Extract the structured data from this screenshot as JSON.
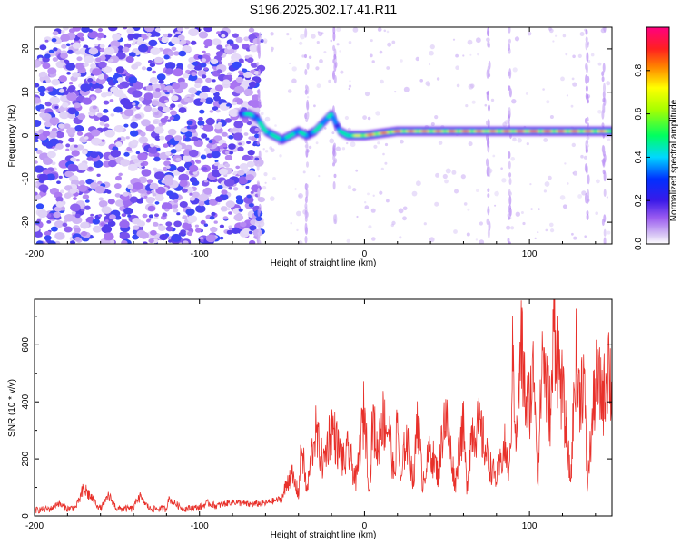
{
  "title": "S196.2025.302.17.41.R11",
  "chart_data": [
    {
      "type": "heatmap",
      "xlabel": "Height of straight line (km)",
      "ylabel": "Frequency (Hz)",
      "xlim": [
        -200,
        150
      ],
      "ylim": [
        -25,
        25
      ],
      "xticks": [
        -200,
        -100,
        0,
        100
      ],
      "xtick_labels": [
        "-200",
        "-100",
        "0",
        "100"
      ],
      "yticks": [
        -20,
        -10,
        0,
        10,
        20
      ],
      "ytick_labels": [
        "-20",
        "-10",
        "0",
        "10",
        "20"
      ],
      "colorbar": {
        "label": "Normalized spectral amplitude",
        "range": [
          0,
          1
        ],
        "ticks": [
          0,
          0.2,
          0.4,
          0.6,
          0.8
        ],
        "tick_labels": [
          "0.0",
          "0.2",
          "0.4",
          "0.6",
          "0.8"
        ]
      },
      "ridge": {
        "description_points_x": [
          -75,
          -70,
          -65,
          -60,
          -55,
          -50,
          -45,
          -40,
          -35,
          -30,
          -25,
          -20,
          -15,
          -10,
          0,
          20,
          40,
          60,
          80,
          100,
          120,
          140,
          150
        ],
        "description_points_y": [
          5,
          5,
          4,
          1,
          0,
          -1,
          0,
          1,
          0,
          1,
          3,
          5,
          1,
          0,
          0,
          1,
          1,
          1,
          1,
          1,
          1,
          1,
          1
        ],
        "peak_amplitude": [
          0.4,
          0.5,
          0.4,
          0.55,
          0.5,
          0.45,
          0.5,
          0.45,
          0.4,
          0.45,
          0.5,
          0.4,
          0.5,
          0.55,
          0.85,
          0.9,
          0.85,
          0.9,
          0.85,
          0.95,
          0.9,
          0.85,
          0.8
        ]
      },
      "noise_region_x": [
        -200,
        -62
      ],
      "noise_amplitude_max": 0.25
    },
    {
      "type": "line",
      "xlabel": "Height of straight line (km)",
      "ylabel": "SNR (10 * v/v)",
      "xlim": [
        -200,
        150
      ],
      "ylim": [
        0,
        760
      ],
      "xticks": [
        -200,
        -100,
        0,
        100
      ],
      "xtick_labels": [
        "-200",
        "-100",
        "0",
        "100"
      ],
      "yticks": [
        0,
        200,
        400,
        600
      ],
      "ytick_labels": [
        "0",
        "200",
        "400",
        "600"
      ],
      "color": "#e8302a",
      "series": [
        {
          "name": "SNR",
          "x": [
            -200,
            -190,
            -186,
            -180,
            -175,
            -170,
            -160,
            -155,
            -150,
            -140,
            -137,
            -130,
            -120,
            -119,
            -110,
            -100,
            -95,
            -90,
            -80,
            -70,
            -60,
            -50,
            -45,
            -40,
            -38,
            -35,
            -30,
            -25,
            -20,
            -15,
            -12,
            -10,
            -5,
            0,
            3,
            5,
            8,
            10,
            15,
            18,
            20,
            22,
            25,
            30,
            32,
            35,
            40,
            45,
            48,
            50,
            55,
            58,
            60,
            62,
            65,
            70,
            75,
            80,
            85,
            88,
            90,
            92,
            95,
            98,
            100,
            103,
            105,
            108,
            110,
            113,
            115,
            118,
            120,
            125,
            128,
            130,
            133,
            135,
            140,
            145,
            148,
            150
          ],
          "baseline": [
            20,
            25,
            45,
            25,
            30,
            95,
            25,
            70,
            25,
            25,
            70,
            25,
            25,
            60,
            25,
            30,
            45,
            35,
            50,
            40,
            45,
            60,
            150,
            80,
            250,
            80,
            300,
            180,
            320,
            220,
            180,
            230,
            120,
            380,
            80,
            340,
            220,
            350,
            300,
            130,
            340,
            100,
            280,
            120,
            380,
            120,
            230,
            140,
            350,
            320,
            110,
            280,
            300,
            100,
            300,
            310,
            190,
            130,
            240,
            150,
            580,
            250,
            600,
            380,
            400,
            520,
            120,
            600,
            460,
            350,
            700,
            500,
            430,
            120,
            560,
            420,
            500,
            100,
            470,
            420,
            560,
            400
          ]
        }
      ]
    }
  ]
}
